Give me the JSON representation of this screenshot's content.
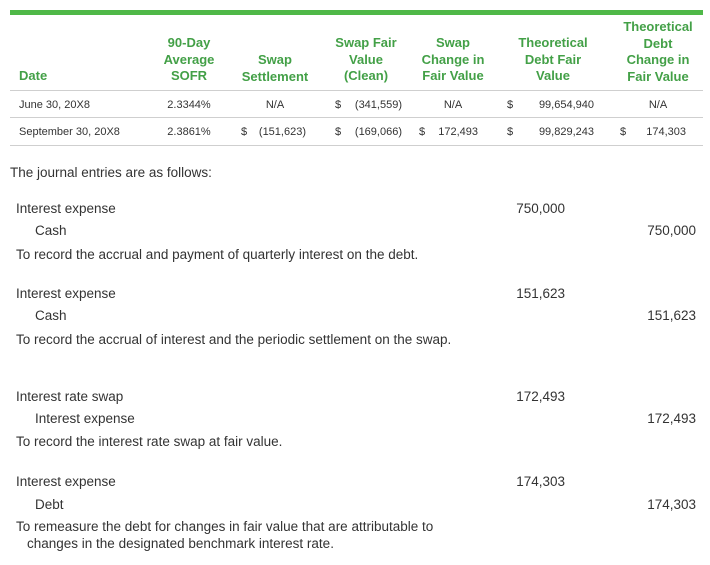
{
  "table": {
    "headers": {
      "date": "Date",
      "sofr": [
        "90-Day",
        "Average",
        "SOFR"
      ],
      "settle": [
        "Swap",
        "Settlement"
      ],
      "swapfv": [
        "Swap Fair",
        "Value",
        "(Clean)"
      ],
      "swapchg": [
        "Swap",
        "Change in",
        "Fair Value"
      ],
      "theofv": [
        "Theoretical",
        "Debt Fair",
        "Value"
      ],
      "theochg": [
        "Theoretical",
        "Debt",
        "Change in",
        "Fair Value"
      ]
    },
    "rows": [
      {
        "date": "June 30, 20X8",
        "sofr": "2.3344%",
        "settle_cur": "",
        "settle": "N/A",
        "swapfv_cur": "$",
        "swapfv": "(341,559)",
        "swapchg_cur": "",
        "swapchg": "N/A",
        "theofv_cur": "$",
        "theofv": "99,654,940",
        "theochg_cur": "",
        "theochg": "N/A"
      },
      {
        "date": "September 30, 20X8",
        "sofr": "2.3861%",
        "settle_cur": "$",
        "settle": "(151,623)",
        "swapfv_cur": "$",
        "swapfv": "(169,066)",
        "swapchg_cur": "$",
        "swapchg": "172,493",
        "theofv_cur": "$",
        "theofv": "99,829,243",
        "theochg_cur": "$",
        "theochg": "174,303"
      }
    ]
  },
  "intro": "The journal entries are as follows:",
  "entries": [
    {
      "debit_account": "Interest expense",
      "debit_amount": "750,000",
      "credit_account": "Cash",
      "credit_amount": "750,000",
      "description": "To record the accrual and payment of quarterly interest on the debt."
    },
    {
      "debit_account": "Interest expense",
      "debit_amount": "151,623",
      "credit_account": "Cash",
      "credit_amount": "151,623",
      "description": "To record the accrual of interest and the periodic settlement on the swap."
    },
    {
      "debit_account": "Interest rate swap",
      "debit_amount": "172,493",
      "credit_account": "Interest expense",
      "credit_amount": "172,493",
      "description": "To record the interest rate swap at fair value."
    },
    {
      "debit_account": "Interest expense",
      "debit_amount": "174,303",
      "credit_account": "Debt",
      "credit_amount": "174,303",
      "description": "To remeasure the debt for changes in fair value that are attributable to changes in the designated benchmark interest rate."
    }
  ]
}
